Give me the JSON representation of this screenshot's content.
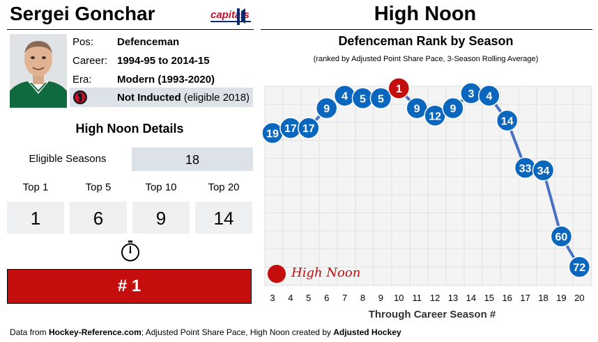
{
  "player": {
    "name": "Sergei Gonchar",
    "team_logo_text": "capitals",
    "info": [
      {
        "label": "Pos:",
        "value": "Defenceman"
      },
      {
        "label": "Career:",
        "value": "1994-95 to 2014-15"
      },
      {
        "label": "Era:",
        "value": "Modern (1993-2020)"
      }
    ],
    "hof_status_bold": "Not Inducted",
    "hof_status_note": "(eligible 2018)"
  },
  "details": {
    "title": "High Noon Details",
    "eligible_label": "Eligible Seasons",
    "eligible_value": "18",
    "tops": [
      {
        "label": "Top 1",
        "value": "1"
      },
      {
        "label": "Top 5",
        "value": "6"
      },
      {
        "label": "Top 10",
        "value": "9"
      },
      {
        "label": "Top 20",
        "value": "14"
      }
    ],
    "rank": "# 1"
  },
  "source": {
    "prefix": "Data from ",
    "site": "Hockey-Reference.com",
    "middle": "; Adjusted Point Share Pace, High Noon created by ",
    "creator": "Adjusted Hockey"
  },
  "chart_heading": "High Noon",
  "colors": {
    "dot": "#0b66bd",
    "highlight": "#c40e0e",
    "line": "#4a72c4",
    "grid": "#e0e0e0",
    "plot_bg": "#f4f4f4"
  },
  "chart_data": {
    "type": "line",
    "title": "Defenceman Rank by Season",
    "subtitle": "(ranked by Adjusted Point Share Pace, 3-Season Rolling Average)",
    "xlabel": "Through Career Season #",
    "ylabel": "",
    "x": [
      3,
      4,
      5,
      6,
      7,
      8,
      9,
      10,
      11,
      12,
      13,
      14,
      15,
      16,
      17,
      18,
      19,
      20
    ],
    "series": [
      {
        "values": [
          19,
          17,
          17,
          9,
          4,
          5,
          5,
          1,
          9,
          12,
          9,
          3,
          4,
          14,
          33,
          34,
          60,
          72
        ]
      }
    ],
    "high_noon_x": 10,
    "legend": {
      "label": "High Noon",
      "position": "bottom-left"
    },
    "xlim": [
      3,
      20
    ],
    "grid": true
  }
}
